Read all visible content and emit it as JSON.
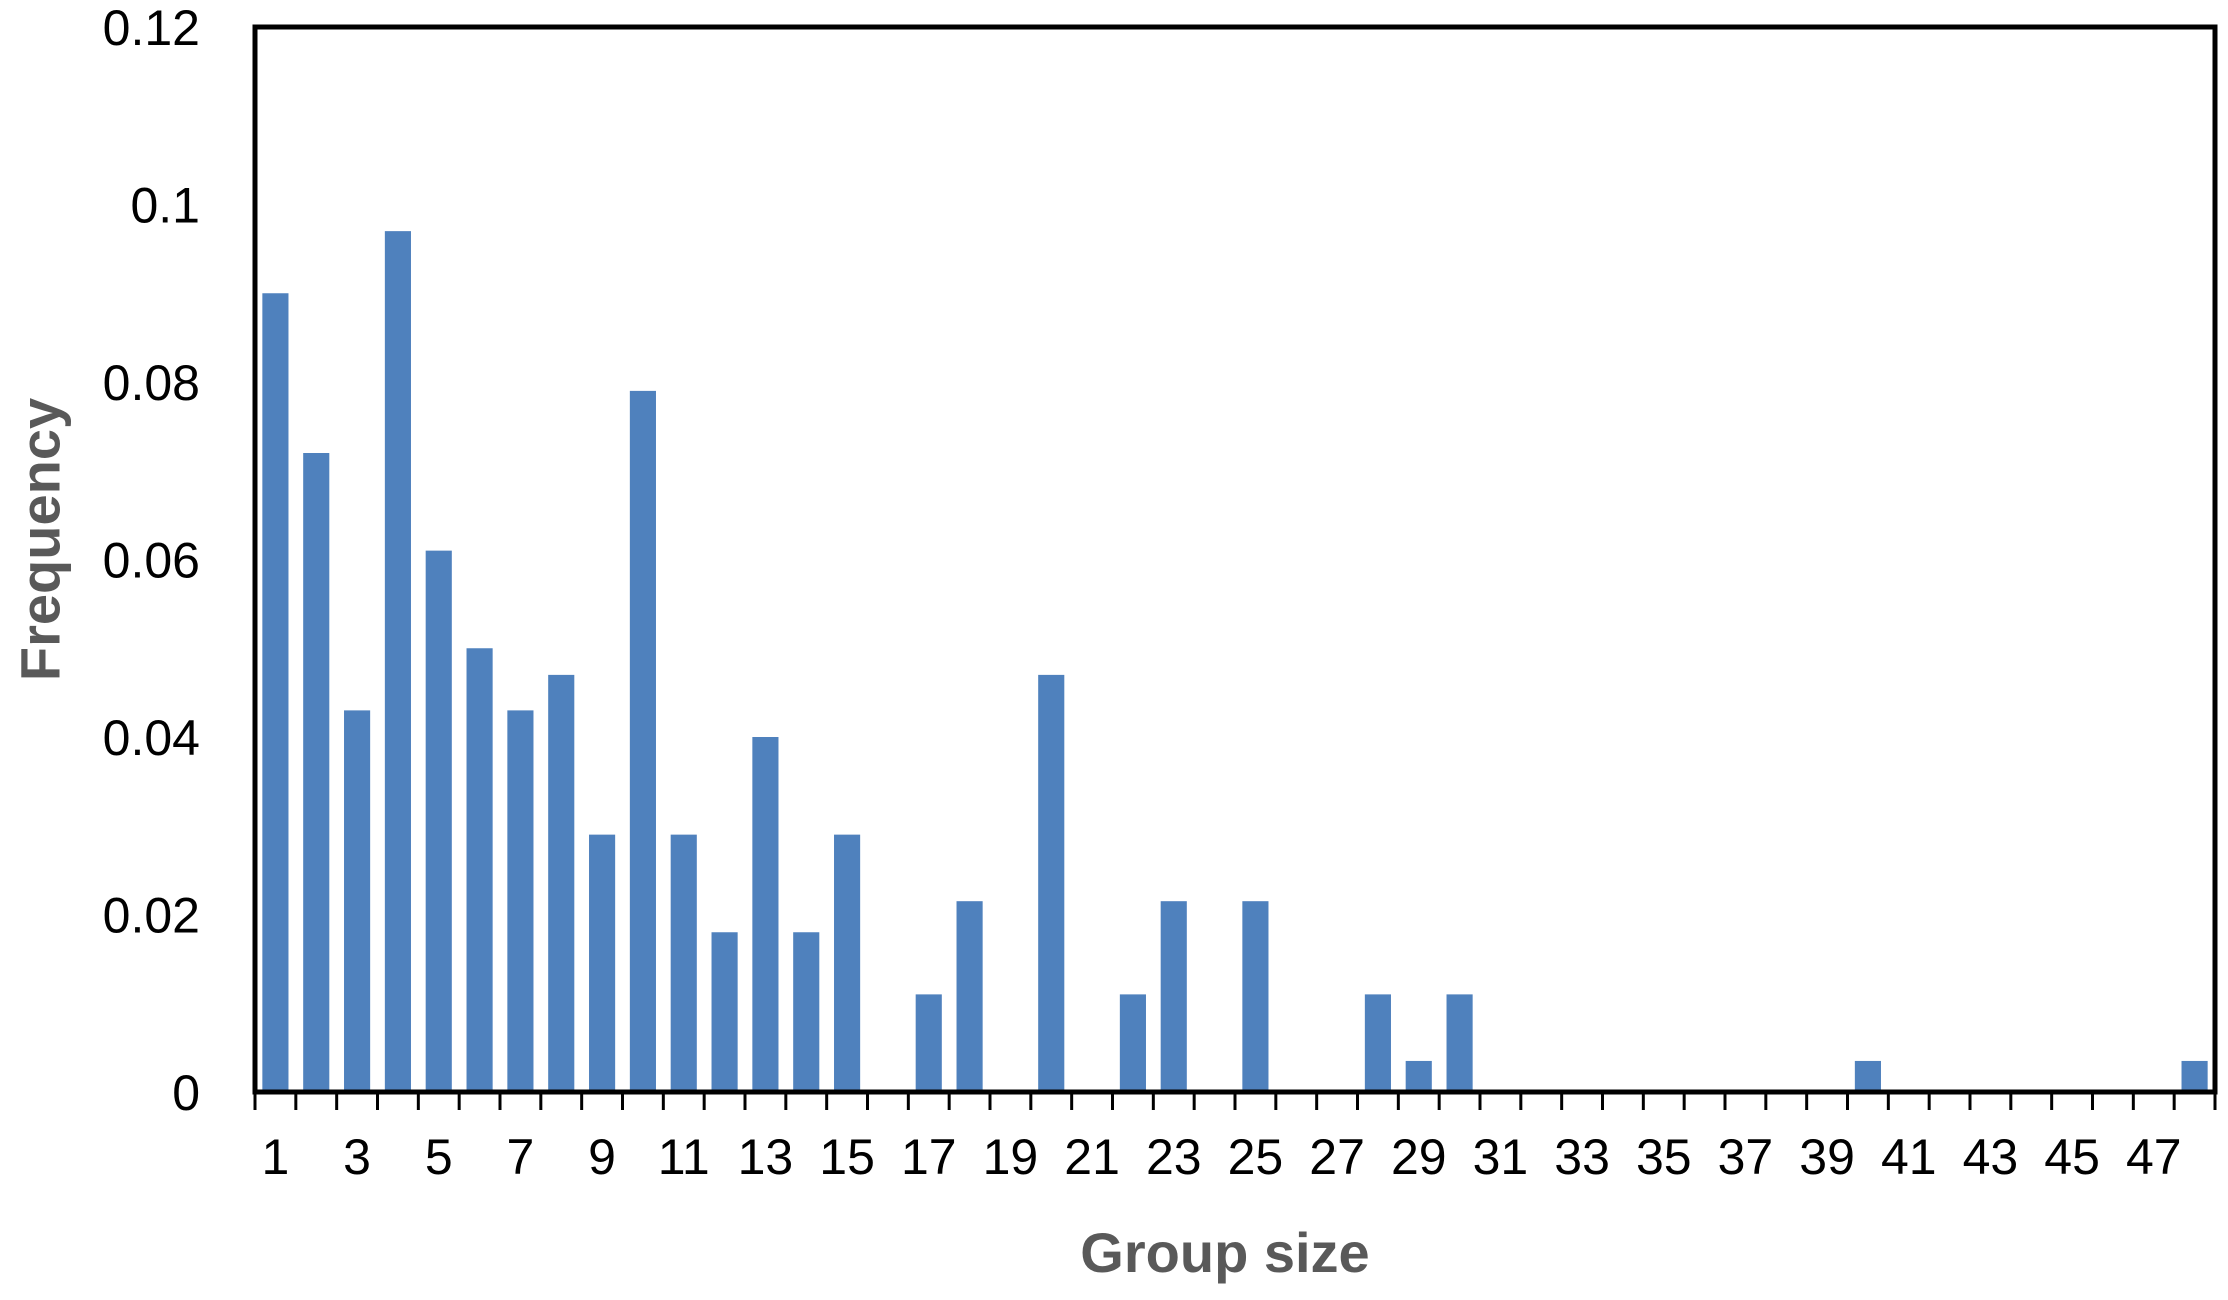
{
  "chart_data": {
    "type": "bar",
    "title": "",
    "xlabel": "Group size",
    "ylabel": "Frequency",
    "ylim": [
      0,
      0.12
    ],
    "yticks": [
      "0",
      "0.02",
      "0.04",
      "0.06",
      "0.08",
      "0.1",
      "0.12"
    ],
    "categories": [
      1,
      2,
      3,
      4,
      5,
      6,
      7,
      8,
      9,
      10,
      11,
      12,
      13,
      14,
      15,
      16,
      17,
      18,
      19,
      20,
      21,
      22,
      23,
      24,
      25,
      26,
      27,
      28,
      29,
      30,
      31,
      32,
      33,
      34,
      35,
      36,
      37,
      38,
      39,
      40,
      41,
      42,
      43,
      44,
      45,
      46,
      47,
      48
    ],
    "xtick_labels": [
      "1",
      "3",
      "5",
      "7",
      "9",
      "11",
      "13",
      "15",
      "17",
      "19",
      "21",
      "23",
      "25",
      "27",
      "29",
      "31",
      "33",
      "35",
      "37",
      "39",
      "41",
      "43",
      "45",
      "47"
    ],
    "values": [
      0.09,
      0.072,
      0.043,
      0.097,
      0.061,
      0.05,
      0.043,
      0.047,
      0.029,
      0.079,
      0.029,
      0.018,
      0.04,
      0.018,
      0.029,
      0,
      0.011,
      0.0215,
      0,
      0.047,
      0,
      0.011,
      0.0215,
      0,
      0.0215,
      0,
      0,
      0.011,
      0.0035,
      0.011,
      0,
      0,
      0,
      0,
      0,
      0,
      0,
      0,
      0,
      0.0035,
      0,
      0,
      0,
      0,
      0,
      0,
      0,
      0.0035
    ],
    "bar_color": "#4f81bd",
    "grid": false,
    "legend": "none"
  }
}
